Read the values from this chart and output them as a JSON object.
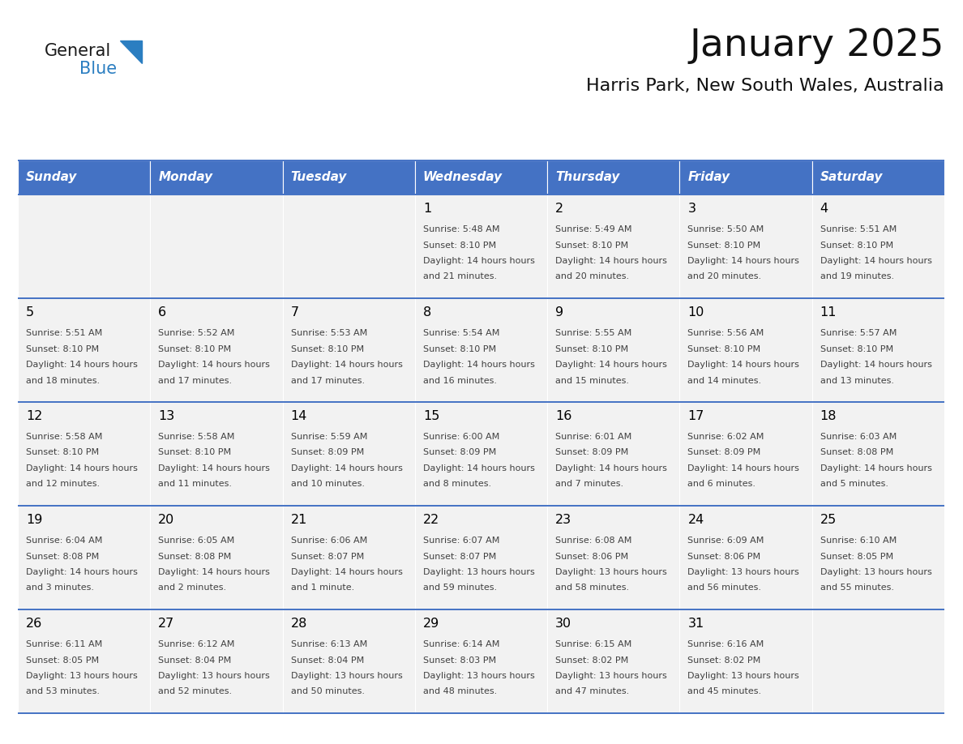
{
  "title": "January 2025",
  "subtitle": "Harris Park, New South Wales, Australia",
  "days_of_week": [
    "Sunday",
    "Monday",
    "Tuesday",
    "Wednesday",
    "Thursday",
    "Friday",
    "Saturday"
  ],
  "header_bg": "#4472C4",
  "header_text": "#FFFFFF",
  "cell_bg": "#F2F2F2",
  "border_color": "#4472C4",
  "text_color": "#404040",
  "day_number_color": "#000000",
  "logo_general_color": "#1a1a1a",
  "logo_blue_color": "#2B7EC1",
  "calendar": [
    [
      null,
      null,
      null,
      {
        "day": 1,
        "sunrise": "5:48 AM",
        "sunset": "8:10 PM",
        "daylight": "14 hours and 21 minutes."
      },
      {
        "day": 2,
        "sunrise": "5:49 AM",
        "sunset": "8:10 PM",
        "daylight": "14 hours and 20 minutes."
      },
      {
        "day": 3,
        "sunrise": "5:50 AM",
        "sunset": "8:10 PM",
        "daylight": "14 hours and 20 minutes."
      },
      {
        "day": 4,
        "sunrise": "5:51 AM",
        "sunset": "8:10 PM",
        "daylight": "14 hours and 19 minutes."
      }
    ],
    [
      {
        "day": 5,
        "sunrise": "5:51 AM",
        "sunset": "8:10 PM",
        "daylight": "14 hours and 18 minutes."
      },
      {
        "day": 6,
        "sunrise": "5:52 AM",
        "sunset": "8:10 PM",
        "daylight": "14 hours and 17 minutes."
      },
      {
        "day": 7,
        "sunrise": "5:53 AM",
        "sunset": "8:10 PM",
        "daylight": "14 hours and 17 minutes."
      },
      {
        "day": 8,
        "sunrise": "5:54 AM",
        "sunset": "8:10 PM",
        "daylight": "14 hours and 16 minutes."
      },
      {
        "day": 9,
        "sunrise": "5:55 AM",
        "sunset": "8:10 PM",
        "daylight": "14 hours and 15 minutes."
      },
      {
        "day": 10,
        "sunrise": "5:56 AM",
        "sunset": "8:10 PM",
        "daylight": "14 hours and 14 minutes."
      },
      {
        "day": 11,
        "sunrise": "5:57 AM",
        "sunset": "8:10 PM",
        "daylight": "14 hours and 13 minutes."
      }
    ],
    [
      {
        "day": 12,
        "sunrise": "5:58 AM",
        "sunset": "8:10 PM",
        "daylight": "14 hours and 12 minutes."
      },
      {
        "day": 13,
        "sunrise": "5:58 AM",
        "sunset": "8:10 PM",
        "daylight": "14 hours and 11 minutes."
      },
      {
        "day": 14,
        "sunrise": "5:59 AM",
        "sunset": "8:09 PM",
        "daylight": "14 hours and 10 minutes."
      },
      {
        "day": 15,
        "sunrise": "6:00 AM",
        "sunset": "8:09 PM",
        "daylight": "14 hours and 8 minutes."
      },
      {
        "day": 16,
        "sunrise": "6:01 AM",
        "sunset": "8:09 PM",
        "daylight": "14 hours and 7 minutes."
      },
      {
        "day": 17,
        "sunrise": "6:02 AM",
        "sunset": "8:09 PM",
        "daylight": "14 hours and 6 minutes."
      },
      {
        "day": 18,
        "sunrise": "6:03 AM",
        "sunset": "8:08 PM",
        "daylight": "14 hours and 5 minutes."
      }
    ],
    [
      {
        "day": 19,
        "sunrise": "6:04 AM",
        "sunset": "8:08 PM",
        "daylight": "14 hours and 3 minutes."
      },
      {
        "day": 20,
        "sunrise": "6:05 AM",
        "sunset": "8:08 PM",
        "daylight": "14 hours and 2 minutes."
      },
      {
        "day": 21,
        "sunrise": "6:06 AM",
        "sunset": "8:07 PM",
        "daylight": "14 hours and 1 minute."
      },
      {
        "day": 22,
        "sunrise": "6:07 AM",
        "sunset": "8:07 PM",
        "daylight": "13 hours and 59 minutes."
      },
      {
        "day": 23,
        "sunrise": "6:08 AM",
        "sunset": "8:06 PM",
        "daylight": "13 hours and 58 minutes."
      },
      {
        "day": 24,
        "sunrise": "6:09 AM",
        "sunset": "8:06 PM",
        "daylight": "13 hours and 56 minutes."
      },
      {
        "day": 25,
        "sunrise": "6:10 AM",
        "sunset": "8:05 PM",
        "daylight": "13 hours and 55 minutes."
      }
    ],
    [
      {
        "day": 26,
        "sunrise": "6:11 AM",
        "sunset": "8:05 PM",
        "daylight": "13 hours and 53 minutes."
      },
      {
        "day": 27,
        "sunrise": "6:12 AM",
        "sunset": "8:04 PM",
        "daylight": "13 hours and 52 minutes."
      },
      {
        "day": 28,
        "sunrise": "6:13 AM",
        "sunset": "8:04 PM",
        "daylight": "13 hours and 50 minutes."
      },
      {
        "day": 29,
        "sunrise": "6:14 AM",
        "sunset": "8:03 PM",
        "daylight": "13 hours and 48 minutes."
      },
      {
        "day": 30,
        "sunrise": "6:15 AM",
        "sunset": "8:02 PM",
        "daylight": "13 hours and 47 minutes."
      },
      {
        "day": 31,
        "sunrise": "6:16 AM",
        "sunset": "8:02 PM",
        "daylight": "13 hours and 45 minutes."
      },
      null
    ]
  ]
}
